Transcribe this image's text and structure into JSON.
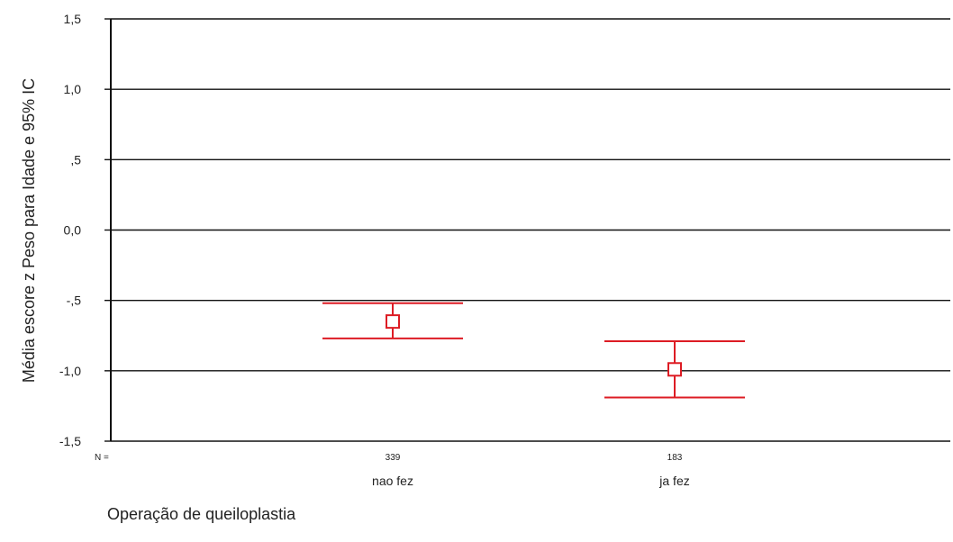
{
  "chart_data": {
    "type": "errorbar",
    "xlabel": "Operação de queiloplastia",
    "ylabel": "Média escore z Peso para Idade e 95% IC",
    "ylim": [
      -1.5,
      1.5
    ],
    "y_ticks": [
      {
        "value": 1.5,
        "label": "1,5"
      },
      {
        "value": 1.0,
        "label": "1,0"
      },
      {
        "value": 0.5,
        "label": ",5"
      },
      {
        "value": 0.0,
        "label": "0,0"
      },
      {
        "value": -0.5,
        "label": "-,5"
      },
      {
        "value": -1.0,
        "label": "-1,0"
      },
      {
        "value": -1.5,
        "label": "-1,5"
      }
    ],
    "grid": true,
    "n_prefix": "N =",
    "categories": [
      "nao fez",
      "ja fez"
    ],
    "n": [
      "339",
      "183"
    ],
    "mean": [
      -0.65,
      -0.99
    ],
    "ci_lower": [
      -0.77,
      -1.19
    ],
    "ci_upper": [
      -0.52,
      -0.79
    ],
    "color": "#dd1c24"
  }
}
